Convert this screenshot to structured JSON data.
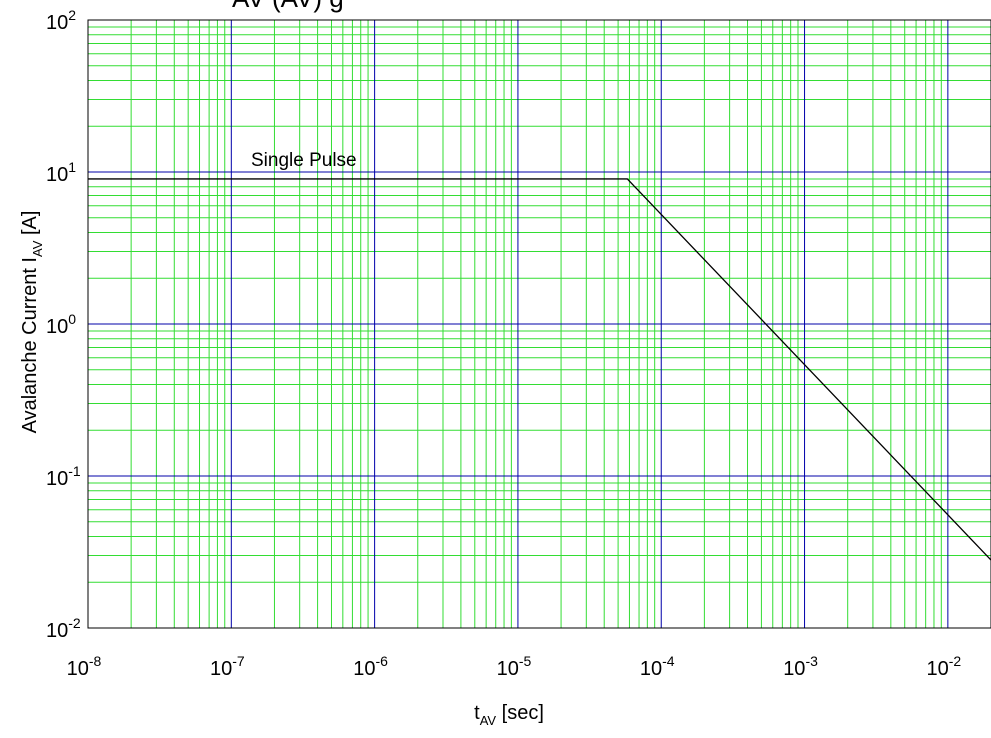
{
  "chart_data": {
    "type": "line",
    "title_fragment": "AV (AV) g",
    "x_scale": "log",
    "y_scale": "log",
    "xlim": [
      1e-08,
      0.02
    ],
    "ylim": [
      0.01,
      100
    ],
    "x_ticks": [
      {
        "base": "10",
        "exp": "-8"
      },
      {
        "base": "10",
        "exp": "-7"
      },
      {
        "base": "10",
        "exp": "-6"
      },
      {
        "base": "10",
        "exp": "-5"
      },
      {
        "base": "10",
        "exp": "-4"
      },
      {
        "base": "10",
        "exp": "-3"
      },
      {
        "base": "10",
        "exp": "-2"
      }
    ],
    "y_ticks": [
      {
        "base": "10",
        "exp": "-2"
      },
      {
        "base": "10",
        "exp": "-1"
      },
      {
        "base": "10",
        "exp": "0"
      },
      {
        "base": "10",
        "exp": "1"
      },
      {
        "base": "10",
        "exp": "2"
      }
    ],
    "xlabel": {
      "main": "t",
      "sub": "AV",
      "unit": " [sec]"
    },
    "ylabel": {
      "main": "Avalanche Current I",
      "sub": "AV",
      "unit": " [A]"
    },
    "grid": {
      "major": true,
      "minor": true,
      "major_color": "#0000aa",
      "minor_color": "#33dd33"
    },
    "series": [
      {
        "name": "Single Pulse",
        "color": "#000000",
        "x": [
          1e-08,
          5.8e-05,
          0.02
        ],
        "y": [
          9.0,
          9.0,
          0.028
        ]
      }
    ]
  }
}
